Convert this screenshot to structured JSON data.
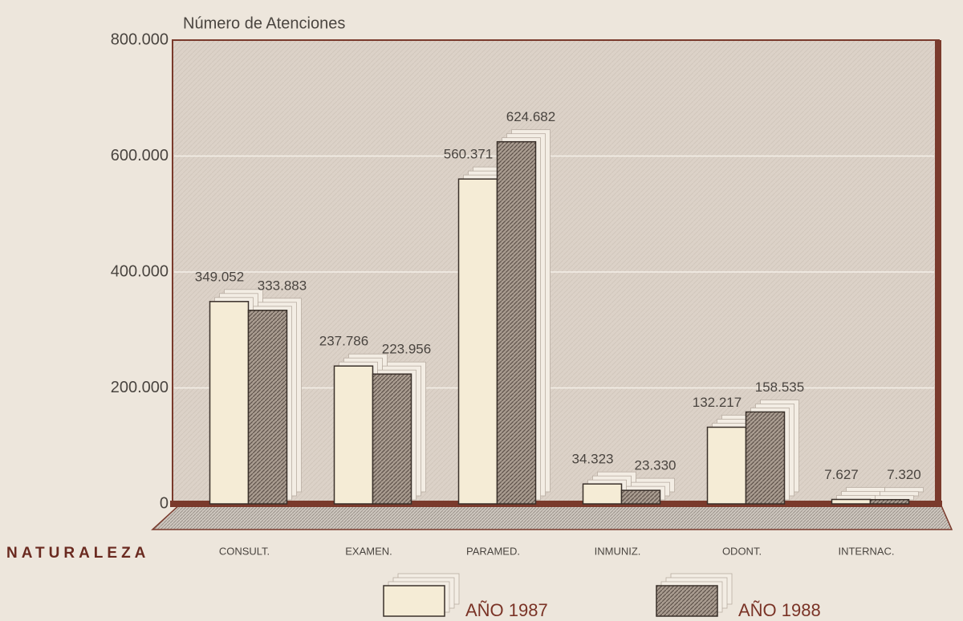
{
  "chart_data": {
    "type": "bar",
    "y_axis_label": "Número de Atenciones",
    "x_axis_label": "NATURALEZA",
    "categories": [
      "CONSULT.",
      "EXAMEN.",
      "PARAMED.",
      "INMUNIZ.",
      "ODONT.",
      "INTERNAC."
    ],
    "series": [
      {
        "name": "AÑO 1987",
        "color": "#f5ecd6",
        "values": [
          349052,
          237786,
          560371,
          34323,
          132217,
          7627
        ],
        "value_labels": [
          "349.052",
          "237.786",
          "560.371",
          "34.323",
          "132.217",
          "7.627"
        ]
      },
      {
        "name": "AÑO 1988",
        "color": "#a99c90",
        "values": [
          333883,
          223956,
          624682,
          23330,
          158535,
          7320
        ],
        "value_labels": [
          "333.883",
          "223.956",
          "624.682",
          "23.330",
          "158.535",
          "7.320"
        ]
      }
    ],
    "ylim": [
      0,
      800000
    ],
    "yticks": [
      0,
      {
        "value": 200000,
        "label": "200.000"
      },
      {
        "value": 400000,
        "label": "400.000"
      },
      {
        "value": 600000,
        "label": "600.000"
      },
      {
        "value": 800000,
        "label": "800.000"
      }
    ],
    "grid": true
  }
}
